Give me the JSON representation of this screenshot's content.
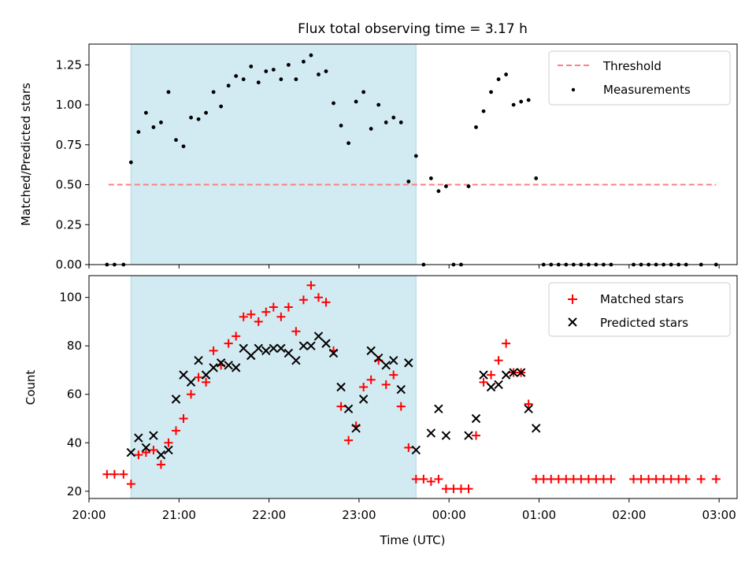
{
  "title": "Flux total observing time = 3.17 h",
  "colors": {
    "shade": "#add8e6",
    "threshold": "#ff7f7f",
    "measurements": "#000000",
    "matched": "#ff0000",
    "predicted": "#000000"
  },
  "chart_data": [
    {
      "type": "scatter",
      "ylabel": "Matched/Predicted stars",
      "xlim": [
        "20:00",
        "03:12"
      ],
      "ylim": [
        0,
        1.38
      ],
      "yticks": [
        "0.00",
        "0.25",
        "0.50",
        "0.75",
        "1.00",
        "1.25"
      ],
      "legend_position": "top-right",
      "shaded_interval": [
        "20:28",
        "23:38"
      ],
      "threshold": {
        "name": "Threshold",
        "value": 0.5,
        "x_range": [
          "20:13",
          "02:58"
        ]
      },
      "series": [
        {
          "name": "Measurements",
          "points": [
            [
              "20:12",
              0.0
            ],
            [
              "20:17",
              0.0
            ],
            [
              "20:23",
              0.0
            ],
            [
              "20:28",
              0.64
            ],
            [
              "20:33",
              0.83
            ],
            [
              "20:38",
              0.95
            ],
            [
              "20:43",
              0.86
            ],
            [
              "20:48",
              0.89
            ],
            [
              "20:53",
              1.08
            ],
            [
              "20:58",
              0.78
            ],
            [
              "21:03",
              0.74
            ],
            [
              "21:08",
              0.92
            ],
            [
              "21:13",
              0.91
            ],
            [
              "21:18",
              0.95
            ],
            [
              "21:23",
              1.08
            ],
            [
              "21:28",
              0.99
            ],
            [
              "21:33",
              1.12
            ],
            [
              "21:38",
              1.18
            ],
            [
              "21:43",
              1.16
            ],
            [
              "21:48",
              1.24
            ],
            [
              "21:53",
              1.14
            ],
            [
              "21:58",
              1.21
            ],
            [
              "22:03",
              1.22
            ],
            [
              "22:08",
              1.16
            ],
            [
              "22:13",
              1.25
            ],
            [
              "22:18",
              1.16
            ],
            [
              "22:23",
              1.27
            ],
            [
              "22:28",
              1.31
            ],
            [
              "22:33",
              1.19
            ],
            [
              "22:38",
              1.21
            ],
            [
              "22:43",
              1.01
            ],
            [
              "22:48",
              0.87
            ],
            [
              "22:53",
              0.76
            ],
            [
              "22:58",
              1.02
            ],
            [
              "23:03",
              1.08
            ],
            [
              "23:08",
              0.85
            ],
            [
              "23:13",
              1.0
            ],
            [
              "23:18",
              0.89
            ],
            [
              "23:23",
              0.92
            ],
            [
              "23:28",
              0.89
            ],
            [
              "23:33",
              0.52
            ],
            [
              "23:38",
              0.68
            ],
            [
              "23:43",
              0.0
            ],
            [
              "23:48",
              0.54
            ],
            [
              "23:53",
              0.46
            ],
            [
              "23:58",
              0.49
            ],
            [
              "00:03",
              0.0
            ],
            [
              "00:08",
              0.0
            ],
            [
              "00:13",
              0.49
            ],
            [
              "00:18",
              0.86
            ],
            [
              "00:23",
              0.96
            ],
            [
              "00:28",
              1.08
            ],
            [
              "00:33",
              1.16
            ],
            [
              "00:38",
              1.19
            ],
            [
              "00:43",
              1.0
            ],
            [
              "00:48",
              1.02
            ],
            [
              "00:53",
              1.03
            ],
            [
              "00:58",
              0.54
            ],
            [
              "01:03",
              0.0
            ],
            [
              "01:08",
              0.0
            ],
            [
              "01:13",
              0.0
            ],
            [
              "01:18",
              0.0
            ],
            [
              "01:23",
              0.0
            ],
            [
              "01:28",
              0.0
            ],
            [
              "01:33",
              0.0
            ],
            [
              "01:38",
              0.0
            ],
            [
              "01:43",
              0.0
            ],
            [
              "01:48",
              0.0
            ],
            [
              "02:03",
              0.0
            ],
            [
              "02:08",
              0.0
            ],
            [
              "02:13",
              0.0
            ],
            [
              "02:18",
              0.0
            ],
            [
              "02:23",
              0.0
            ],
            [
              "02:28",
              0.0
            ],
            [
              "02:33",
              0.0
            ],
            [
              "02:38",
              0.0
            ],
            [
              "02:48",
              0.0
            ],
            [
              "02:58",
              0.0
            ]
          ]
        }
      ]
    },
    {
      "type": "scatter",
      "xlabel": "Time (UTC)",
      "ylabel": "Count",
      "xlim": [
        "20:00",
        "03:12"
      ],
      "ylim": [
        17,
        109
      ],
      "xticks": [
        "20:00",
        "21:00",
        "22:00",
        "23:00",
        "00:00",
        "01:00",
        "02:00",
        "03:00"
      ],
      "yticks": [
        "20",
        "40",
        "60",
        "80",
        "100"
      ],
      "legend_position": "top-right",
      "shaded_interval": [
        "20:28",
        "23:38"
      ],
      "series": [
        {
          "name": "Matched stars",
          "marker": "plus",
          "points": [
            [
              "20:12",
              27
            ],
            [
              "20:17",
              27
            ],
            [
              "20:23",
              27
            ],
            [
              "20:28",
              23
            ],
            [
              "20:33",
              35
            ],
            [
              "20:38",
              36
            ],
            [
              "20:43",
              37
            ],
            [
              "20:48",
              31
            ],
            [
              "20:53",
              40
            ],
            [
              "20:58",
              45
            ],
            [
              "21:03",
              50
            ],
            [
              "21:08",
              60
            ],
            [
              "21:13",
              67
            ],
            [
              "21:18",
              65
            ],
            [
              "21:23",
              78
            ],
            [
              "21:28",
              72
            ],
            [
              "21:33",
              81
            ],
            [
              "21:38",
              84
            ],
            [
              "21:43",
              92
            ],
            [
              "21:48",
              93
            ],
            [
              "21:53",
              90
            ],
            [
              "21:58",
              94
            ],
            [
              "22:03",
              96
            ],
            [
              "22:08",
              92
            ],
            [
              "22:13",
              96
            ],
            [
              "22:18",
              86
            ],
            [
              "22:23",
              99
            ],
            [
              "22:28",
              105
            ],
            [
              "22:33",
              100
            ],
            [
              "22:38",
              98
            ],
            [
              "22:43",
              78
            ],
            [
              "22:48",
              55
            ],
            [
              "22:53",
              41
            ],
            [
              "22:58",
              47
            ],
            [
              "23:03",
              63
            ],
            [
              "23:08",
              66
            ],
            [
              "23:13",
              74
            ],
            [
              "23:18",
              64
            ],
            [
              "23:23",
              68
            ],
            [
              "23:28",
              55
            ],
            [
              "23:33",
              38
            ],
            [
              "23:38",
              25
            ],
            [
              "23:43",
              25
            ],
            [
              "23:48",
              24
            ],
            [
              "23:53",
              25
            ],
            [
              "23:58",
              21
            ],
            [
              "00:03",
              21
            ],
            [
              "00:08",
              21
            ],
            [
              "00:13",
              21
            ],
            [
              "00:18",
              43
            ],
            [
              "00:23",
              65
            ],
            [
              "00:28",
              68
            ],
            [
              "00:33",
              74
            ],
            [
              "00:38",
              81
            ],
            [
              "00:43",
              69
            ],
            [
              "00:48",
              69
            ],
            [
              "00:53",
              56
            ],
            [
              "00:58",
              25
            ],
            [
              "01:03",
              25
            ],
            [
              "01:08",
              25
            ],
            [
              "01:13",
              25
            ],
            [
              "01:18",
              25
            ],
            [
              "01:23",
              25
            ],
            [
              "01:28",
              25
            ],
            [
              "01:33",
              25
            ],
            [
              "01:38",
              25
            ],
            [
              "01:43",
              25
            ],
            [
              "01:48",
              25
            ],
            [
              "02:03",
              25
            ],
            [
              "02:08",
              25
            ],
            [
              "02:13",
              25
            ],
            [
              "02:18",
              25
            ],
            [
              "02:23",
              25
            ],
            [
              "02:28",
              25
            ],
            [
              "02:33",
              25
            ],
            [
              "02:38",
              25
            ],
            [
              "02:48",
              25
            ],
            [
              "02:58",
              25
            ]
          ]
        },
        {
          "name": "Predicted stars",
          "marker": "x",
          "points": [
            [
              "20:28",
              36
            ],
            [
              "20:33",
              42
            ],
            [
              "20:38",
              38
            ],
            [
              "20:43",
              43
            ],
            [
              "20:48",
              35
            ],
            [
              "20:53",
              37
            ],
            [
              "20:58",
              58
            ],
            [
              "21:03",
              68
            ],
            [
              "21:08",
              65
            ],
            [
              "21:13",
              74
            ],
            [
              "21:18",
              68
            ],
            [
              "21:23",
              71
            ],
            [
              "21:28",
              73
            ],
            [
              "21:33",
              72
            ],
            [
              "21:38",
              71
            ],
            [
              "21:43",
              79
            ],
            [
              "21:48",
              76
            ],
            [
              "21:53",
              79
            ],
            [
              "21:58",
              78
            ],
            [
              "22:03",
              79
            ],
            [
              "22:08",
              79
            ],
            [
              "22:13",
              77
            ],
            [
              "22:18",
              74
            ],
            [
              "22:23",
              80
            ],
            [
              "22:28",
              80
            ],
            [
              "22:33",
              84
            ],
            [
              "22:38",
              81
            ],
            [
              "22:43",
              77
            ],
            [
              "22:48",
              63
            ],
            [
              "22:53",
              54
            ],
            [
              "22:58",
              46
            ],
            [
              "23:03",
              58
            ],
            [
              "23:08",
              78
            ],
            [
              "23:13",
              75
            ],
            [
              "23:18",
              72
            ],
            [
              "23:23",
              74
            ],
            [
              "23:28",
              62
            ],
            [
              "23:33",
              73
            ],
            [
              "23:38",
              37
            ],
            [
              "23:48",
              44
            ],
            [
              "23:53",
              54
            ],
            [
              "23:58",
              43
            ],
            [
              "00:13",
              43
            ],
            [
              "00:18",
              50
            ],
            [
              "00:23",
              68
            ],
            [
              "00:28",
              63
            ],
            [
              "00:33",
              64
            ],
            [
              "00:38",
              68
            ],
            [
              "00:43",
              69
            ],
            [
              "00:48",
              69
            ],
            [
              "00:53",
              54
            ],
            [
              "00:58",
              46
            ]
          ]
        }
      ]
    }
  ]
}
